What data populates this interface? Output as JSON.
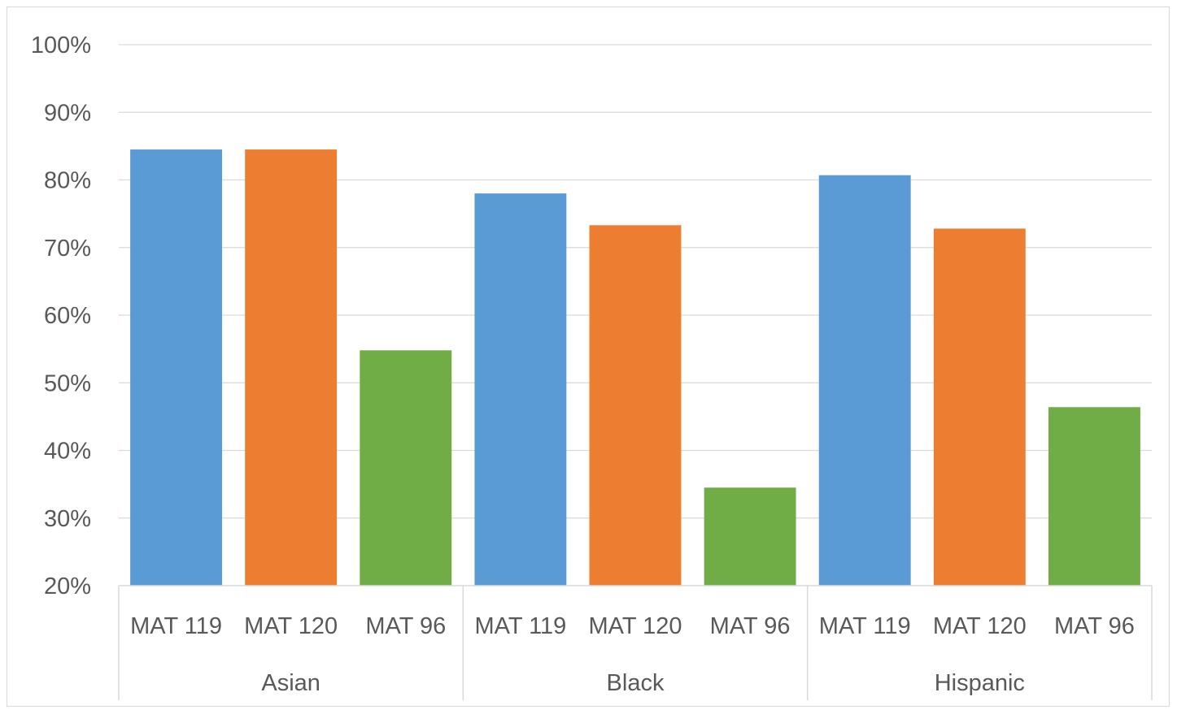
{
  "chart_data": {
    "type": "bar",
    "title": "",
    "xlabel": "",
    "ylabel": "",
    "ylim": [
      0.2,
      1.0
    ],
    "yticks": [
      0.2,
      0.3,
      0.4,
      0.5,
      0.6,
      0.7,
      0.8,
      0.9,
      1.0
    ],
    "ytick_labels": [
      "20%",
      "30%",
      "40%",
      "50%",
      "60%",
      "70%",
      "80%",
      "90%",
      "100%"
    ],
    "grid": true,
    "legend": "none",
    "groups": [
      {
        "name": "Asian",
        "bars": [
          {
            "label": "MAT 119",
            "value": 0.845,
            "color": "#5b9bd5"
          },
          {
            "label": "MAT 120",
            "value": 0.845,
            "color": "#ed7d31"
          },
          {
            "label": "MAT 96",
            "value": 0.548,
            "color": "#70ad47"
          }
        ]
      },
      {
        "name": "Black",
        "bars": [
          {
            "label": "MAT 119",
            "value": 0.78,
            "color": "#5b9bd5"
          },
          {
            "label": "MAT 120",
            "value": 0.733,
            "color": "#ed7d31"
          },
          {
            "label": "MAT 96",
            "value": 0.345,
            "color": "#70ad47"
          }
        ]
      },
      {
        "name": "Hispanic",
        "bars": [
          {
            "label": "MAT 119",
            "value": 0.807,
            "color": "#5b9bd5"
          },
          {
            "label": "MAT 120",
            "value": 0.728,
            "color": "#ed7d31"
          },
          {
            "label": "MAT 96",
            "value": 0.464,
            "color": "#70ad47"
          }
        ]
      }
    ],
    "colors": {
      "grid": "#d9d9d9",
      "axis_text": "#595959"
    }
  }
}
